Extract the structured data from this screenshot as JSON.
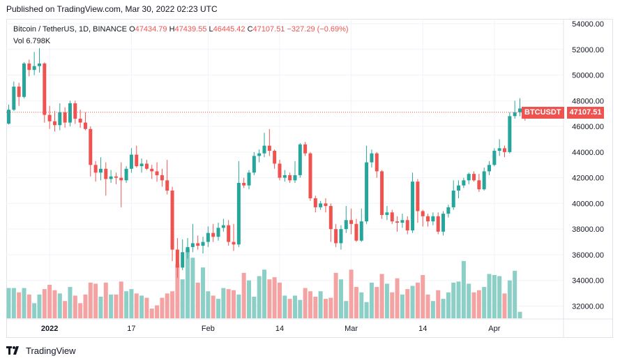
{
  "published": "Published on TradingView.com, Mar 30, 2022 02:23 UTC",
  "legend": {
    "symbol": "Bitcoin / TetherUS, 1D, BINANCE",
    "o_label": "O",
    "o": "47434.79",
    "h_label": "H",
    "h": "47439.55",
    "l_label": "L",
    "l": "46445.42",
    "c_label": "C",
    "c": "47107.51",
    "change": "−327.29 (−0.69%)",
    "vol_label": "Vol",
    "vol": "6.798K"
  },
  "price_tag": {
    "symbol": "BTCUSDT",
    "value": "47107.51"
  },
  "footer": {
    "brand": "TradingView"
  },
  "colors": {
    "up": "#26a69a",
    "down": "#ef5350",
    "up_vol": "#8ccfc6",
    "down_vol": "#f5a3a2",
    "grid": "#f0f3fa"
  },
  "chart_data": {
    "type": "candlestick",
    "symbol": "BTCUSDT",
    "y_ticks": [
      "54000.00",
      "52000.00",
      "50000.00",
      "48000.00",
      "46000.00",
      "44000.00",
      "42000.00",
      "40000.00",
      "38000.00",
      "36000.00",
      "34000.00",
      "32000.00"
    ],
    "ylim": [
      30800,
      54300
    ],
    "x_ticks": [
      "2022",
      "17",
      "Feb",
      "14",
      "Mar",
      "14",
      "Apr"
    ],
    "x_tick_index": [
      8,
      24,
      39,
      53,
      67,
      81,
      95
    ],
    "last_price": 47107.51,
    "candles": [
      [
        46216,
        47700,
        46150,
        47300
      ],
      [
        47300,
        49500,
        47200,
        49100
      ],
      [
        49100,
        49400,
        47600,
        48300
      ],
      [
        48300,
        51000,
        48200,
        50900
      ],
      [
        50900,
        51200,
        49900,
        50400
      ],
      [
        50400,
        51800,
        50000,
        50700
      ],
      [
        50700,
        52100,
        50200,
        50900
      ],
      [
        50900,
        51000,
        46300,
        46900
      ],
      [
        46900,
        47600,
        45800,
        46400
      ],
      [
        46400,
        47200,
        45600,
        46100
      ],
      [
        46100,
        47800,
        45700,
        47100
      ],
      [
        47100,
        47500,
        45900,
        46300
      ],
      [
        46300,
        48000,
        46000,
        47800
      ],
      [
        47800,
        48000,
        46200,
        46600
      ],
      [
        46600,
        47300,
        45900,
        46300
      ],
      [
        46300,
        47100,
        45700,
        45800
      ],
      [
        45800,
        46000,
        42100,
        43000
      ],
      [
        43000,
        43300,
        41700,
        42400
      ],
      [
        42400,
        43600,
        41800,
        42700
      ],
      [
        42700,
        43200,
        40600,
        41900
      ],
      [
        41900,
        42600,
        41600,
        42100
      ],
      [
        42100,
        42400,
        41500,
        42000
      ],
      [
        42000,
        43200,
        39700,
        41800
      ],
      [
        41800,
        42900,
        41600,
        42700
      ],
      [
        42700,
        44300,
        42400,
        43800
      ],
      [
        43800,
        44500,
        42800,
        42900
      ],
      [
        42900,
        43500,
        42400,
        43100
      ],
      [
        43100,
        43400,
        42600,
        42700
      ],
      [
        42700,
        43000,
        41900,
        42500
      ],
      [
        42500,
        43200,
        41700,
        42200
      ],
      [
        42200,
        42700,
        41300,
        41800
      ],
      [
        41800,
        43400,
        40700,
        41000
      ],
      [
        41000,
        41300,
        35500,
        36400
      ],
      [
        36400,
        37300,
        34200,
        35000
      ],
      [
        35000,
        37200,
        34800,
        36200
      ],
      [
        36200,
        37300,
        35700,
        36600
      ],
      [
        36600,
        38400,
        36200,
        36900
      ],
      [
        36900,
        37500,
        36400,
        36700
      ],
      [
        36700,
        37400,
        36100,
        37000
      ],
      [
        37000,
        38200,
        36600,
        37700
      ],
      [
        37700,
        38400,
        37000,
        37400
      ],
      [
        37400,
        38500,
        37100,
        38100
      ],
      [
        38100,
        38800,
        37800,
        38300
      ],
      [
        38300,
        38700,
        36700,
        37000
      ],
      [
        37000,
        38400,
        36300,
        36800
      ],
      [
        36800,
        43300,
        36600,
        41600
      ],
      [
        41600,
        42000,
        41200,
        41400
      ],
      [
        41400,
        42600,
        41100,
        42400
      ],
      [
        42400,
        44000,
        42200,
        43700
      ],
      [
        43700,
        44200,
        43200,
        43900
      ],
      [
        43900,
        45500,
        43600,
        44500
      ],
      [
        44500,
        45800,
        43700,
        44100
      ],
      [
        44100,
        44200,
        42700,
        43100
      ],
      [
        43100,
        43400,
        41800,
        42000
      ],
      [
        42000,
        42600,
        41700,
        42200
      ],
      [
        42200,
        42400,
        41600,
        41800
      ],
      [
        41800,
        43300,
        41600,
        42200
      ],
      [
        42200,
        44700,
        42000,
        44600
      ],
      [
        44600,
        44800,
        43700,
        43900
      ],
      [
        43900,
        44000,
        40200,
        40400
      ],
      [
        40400,
        40600,
        39300,
        39700
      ],
      [
        39700,
        40200,
        39500,
        40000
      ],
      [
        40000,
        40400,
        39300,
        39800
      ],
      [
        39800,
        40000,
        37000,
        38000
      ],
      [
        38000,
        38400,
        36600,
        36900
      ],
      [
        36900,
        38300,
        36400,
        38000
      ],
      [
        38000,
        39800,
        37700,
        38700
      ],
      [
        38700,
        39600,
        37600,
        38400
      ],
      [
        38400,
        38800,
        37000,
        37100
      ],
      [
        37100,
        39600,
        37000,
        38600
      ],
      [
        38600,
        44500,
        38400,
        43200
      ],
      [
        43200,
        44200,
        42800,
        43900
      ],
      [
        43900,
        44000,
        42000,
        42500
      ],
      [
        42500,
        42600,
        38800,
        39100
      ],
      [
        39100,
        39800,
        38700,
        39300
      ],
      [
        39300,
        39500,
        38400,
        38600
      ],
      [
        38600,
        39000,
        37800,
        38500
      ],
      [
        38500,
        39200,
        38100,
        38700
      ],
      [
        38700,
        39000,
        37600,
        37900
      ],
      [
        37900,
        42400,
        37700,
        41700
      ],
      [
        41700,
        41900,
        38500,
        39400
      ],
      [
        39400,
        39500,
        38200,
        39000
      ],
      [
        39000,
        39200,
        38200,
        38600
      ],
      [
        38600,
        39300,
        38300,
        39000
      ],
      [
        39000,
        39300,
        37600,
        37800
      ],
      [
        37800,
        39400,
        37500,
        39200
      ],
      [
        39200,
        39900,
        38900,
        39700
      ],
      [
        39700,
        41800,
        39500,
        41000
      ],
      [
        41000,
        41800,
        40400,
        41400
      ],
      [
        41400,
        42000,
        41200,
        41800
      ],
      [
        41800,
        42400,
        41500,
        42300
      ],
      [
        42300,
        42500,
        41700,
        41800
      ],
      [
        41800,
        42300,
        40900,
        41100
      ],
      [
        41100,
        42800,
        41000,
        42500
      ],
      [
        42500,
        43300,
        42200,
        43000
      ],
      [
        43000,
        44300,
        42900,
        44100
      ],
      [
        44100,
        45000,
        43700,
        44300
      ],
      [
        44300,
        44500,
        43600,
        44000
      ],
      [
        44000,
        47100,
        43900,
        46800
      ],
      [
        46800,
        48000,
        46600,
        47100
      ],
      [
        47100,
        48200,
        46800,
        47400
      ],
      [
        47434.79,
        47439.55,
        46445.42,
        47107.51
      ]
    ],
    "volume": [
      2.8,
      2.8,
      2.4,
      2.8,
      2.2,
      1.4,
      2.2,
      2.7,
      3.1,
      2.6,
      2.3,
      1.6,
      2.9,
      2.1,
      1.4,
      2.2,
      3.3,
      3.2,
      2.0,
      3.3,
      2.2,
      2.2,
      3.4,
      2.5,
      2.7,
      2.3,
      2.1,
      1.9,
      0.9,
      1.2,
      1.9,
      2.3,
      2.5,
      5.0,
      3.6,
      6.4,
      5.6,
      3.3,
      4.7,
      2.5,
      2.1,
      1.8,
      2.8,
      2.7,
      2.6,
      2.2,
      4.2,
      3.5,
      2.0,
      3.9,
      4.5,
      3.6,
      3.8,
      3.3,
      2.1,
      1.8,
      2.1,
      1.7,
      2.8,
      2.5,
      2.0,
      2.5,
      1.8,
      1.9,
      4.2,
      3.6,
      1.6,
      4.5,
      2.9,
      2.4,
      1.5,
      3.3,
      2.9,
      4.1,
      3.2,
      2.4,
      3.7,
      2.2,
      2.7,
      3.0,
      3.3,
      4.0,
      2.2,
      1.6,
      2.6,
      1.8,
      2.4,
      3.3,
      3.4,
      5.3,
      3.2,
      2.4,
      2.6,
      2.9,
      4.1,
      4.0,
      3.9,
      2.3,
      3.5,
      4.4,
      0.6
    ]
  }
}
